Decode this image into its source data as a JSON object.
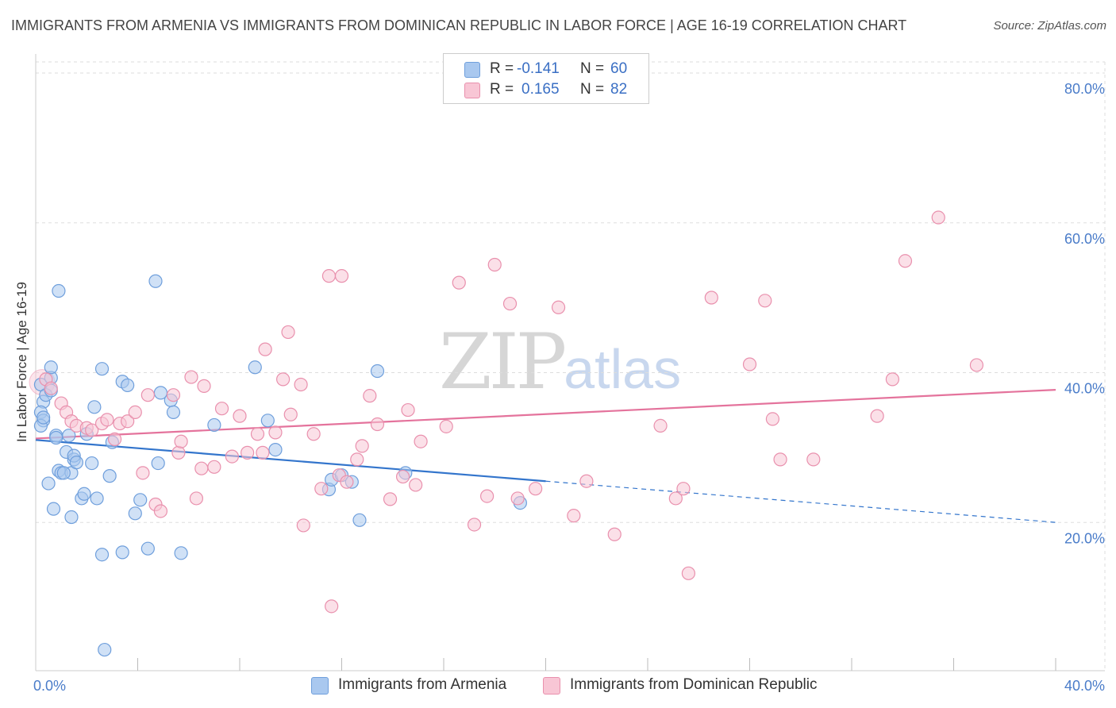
{
  "title": "IMMIGRANTS FROM ARMENIA VS IMMIGRANTS FROM DOMINICAN REPUBLIC IN LABOR FORCE | AGE 16-19 CORRELATION CHART",
  "source": "Source: ZipAtlas.com",
  "watermark": {
    "zip": "ZIP",
    "atlas": "atlas"
  },
  "colors": {
    "armenia_fill": "#a9c8ef",
    "armenia_stroke": "#6f9fdc",
    "armenia_line": "#3375cc",
    "dominican_fill": "#f8c6d5",
    "dominican_stroke": "#e990ad",
    "dominican_line": "#e4739c",
    "grid": "#dddddd",
    "tick_label": "#4a7cc9"
  },
  "legend": {
    "rows": [
      {
        "r_label": "R =",
        "r_value": "-0.141",
        "n_label": "N =",
        "n_value": "60"
      },
      {
        "r_label": "R =",
        "r_value": "0.165",
        "n_label": "N =",
        "n_value": "82"
      }
    ]
  },
  "chart_data": {
    "type": "scatter",
    "title": "IMMIGRANTS FROM ARMENIA VS IMMIGRANTS FROM DOMINICAN REPUBLIC IN LABOR FORCE | AGE 16-19 CORRELATION CHART",
    "xlabel": "",
    "ylabel": "In Labor Force | Age 16-19",
    "xlim": [
      0,
      40
    ],
    "ylim": [
      0,
      80
    ],
    "x_tick_labels": [
      "0.0%",
      "40.0%"
    ],
    "y_ticks": [
      20,
      40,
      60,
      80
    ],
    "y_tick_labels": [
      "20.0%",
      "40.0%",
      "60.0%",
      "80.0%"
    ],
    "series": [
      {
        "name": "Immigrants from Armenia",
        "R": -0.141,
        "N": 60,
        "trend": {
          "x0": 0,
          "y0": 30.8,
          "x1": 20,
          "y1": 25.3,
          "dash_x1": 40,
          "dash_y1": 19.8
        },
        "points": [
          [
            0.2,
            38.2
          ],
          [
            0.3,
            35.9
          ],
          [
            0.2,
            34.5
          ],
          [
            0.3,
            33.4
          ],
          [
            0.2,
            32.7
          ],
          [
            0.6,
            39.1
          ],
          [
            0.4,
            36.8
          ],
          [
            0.6,
            37.4
          ],
          [
            0.6,
            40.5
          ],
          [
            0.3,
            33.8
          ],
          [
            0.9,
            50.7
          ],
          [
            0.5,
            25.0
          ],
          [
            0.7,
            21.6
          ],
          [
            0.8,
            31.4
          ],
          [
            0.9,
            26.7
          ],
          [
            1.0,
            26.4
          ],
          [
            1.3,
            31.4
          ],
          [
            1.2,
            29.2
          ],
          [
            1.5,
            28.2
          ],
          [
            1.4,
            26.4
          ],
          [
            1.5,
            28.7
          ],
          [
            1.1,
            26.4
          ],
          [
            1.4,
            20.5
          ],
          [
            1.8,
            23.0
          ],
          [
            1.9,
            23.6
          ],
          [
            2.0,
            31.6
          ],
          [
            2.3,
            35.2
          ],
          [
            2.2,
            27.7
          ],
          [
            2.4,
            23.0
          ],
          [
            2.6,
            40.3
          ],
          [
            2.9,
            26.0
          ],
          [
            3.0,
            30.5
          ],
          [
            3.4,
            38.6
          ],
          [
            3.6,
            38.1
          ],
          [
            3.9,
            21.0
          ],
          [
            4.1,
            22.8
          ],
          [
            4.7,
            52.0
          ],
          [
            4.9,
            37.1
          ],
          [
            5.3,
            36.1
          ],
          [
            4.8,
            27.7
          ],
          [
            5.4,
            34.5
          ],
          [
            7.0,
            32.8
          ],
          [
            8.6,
            40.5
          ],
          [
            9.1,
            33.4
          ],
          [
            9.4,
            29.5
          ],
          [
            11.5,
            24.2
          ],
          [
            11.6,
            25.5
          ],
          [
            12.0,
            26.1
          ],
          [
            12.4,
            25.2
          ],
          [
            12.7,
            20.1
          ],
          [
            13.4,
            40.0
          ],
          [
            14.5,
            26.4
          ],
          [
            19.0,
            22.4
          ],
          [
            2.7,
            2.8
          ],
          [
            2.6,
            15.5
          ],
          [
            3.4,
            15.8
          ],
          [
            4.4,
            16.3
          ],
          [
            5.7,
            15.7
          ],
          [
            0.8,
            31.1
          ],
          [
            1.6,
            27.8
          ]
        ]
      },
      {
        "name": "Immigrants from Dominican Republic",
        "R": 0.165,
        "N": 82,
        "trend": {
          "x0": 0,
          "y0": 31.0,
          "x1": 40,
          "y1": 37.5
        },
        "points": [
          [
            0.4,
            38.9
          ],
          [
            0.6,
            37.7
          ],
          [
            1.0,
            35.7
          ],
          [
            1.2,
            34.5
          ],
          [
            1.4,
            33.3
          ],
          [
            1.6,
            32.7
          ],
          [
            2.0,
            32.4
          ],
          [
            2.2,
            32.1
          ],
          [
            2.6,
            33.0
          ],
          [
            2.8,
            33.5
          ],
          [
            3.1,
            30.9
          ],
          [
            3.3,
            33.0
          ],
          [
            3.6,
            33.3
          ],
          [
            3.9,
            34.5
          ],
          [
            4.2,
            26.4
          ],
          [
            4.4,
            36.8
          ],
          [
            4.7,
            22.2
          ],
          [
            4.9,
            21.3
          ],
          [
            5.4,
            36.8
          ],
          [
            5.6,
            29.1
          ],
          [
            5.7,
            30.6
          ],
          [
            6.1,
            39.2
          ],
          [
            6.3,
            23.0
          ],
          [
            6.5,
            27.0
          ],
          [
            6.6,
            38.0
          ],
          [
            7.0,
            27.2
          ],
          [
            7.3,
            35.0
          ],
          [
            7.7,
            28.6
          ],
          [
            8.0,
            34.0
          ],
          [
            8.3,
            29.1
          ],
          [
            8.7,
            31.6
          ],
          [
            8.9,
            29.1
          ],
          [
            9.0,
            42.9
          ],
          [
            9.4,
            31.8
          ],
          [
            9.7,
            38.9
          ],
          [
            9.9,
            45.2
          ],
          [
            10.0,
            34.2
          ],
          [
            10.4,
            38.2
          ],
          [
            10.5,
            19.4
          ],
          [
            10.9,
            31.6
          ],
          [
            11.2,
            24.3
          ],
          [
            11.5,
            52.7
          ],
          [
            11.6,
            8.6
          ],
          [
            11.9,
            26.1
          ],
          [
            12.0,
            52.7
          ],
          [
            12.2,
            25.2
          ],
          [
            12.6,
            28.2
          ],
          [
            12.8,
            30.0
          ],
          [
            13.1,
            36.7
          ],
          [
            13.4,
            32.9
          ],
          [
            13.9,
            22.9
          ],
          [
            14.4,
            25.9
          ],
          [
            14.6,
            34.8
          ],
          [
            14.9,
            24.8
          ],
          [
            15.1,
            30.6
          ],
          [
            16.1,
            32.6
          ],
          [
            16.6,
            51.8
          ],
          [
            17.2,
            19.5
          ],
          [
            17.7,
            23.3
          ],
          [
            18.0,
            54.2
          ],
          [
            18.6,
            49.0
          ],
          [
            18.9,
            23.0
          ],
          [
            19.6,
            24.3
          ],
          [
            20.5,
            48.5
          ],
          [
            21.1,
            20.7
          ],
          [
            21.6,
            25.3
          ],
          [
            22.7,
            18.2
          ],
          [
            24.5,
            32.7
          ],
          [
            25.1,
            23.0
          ],
          [
            25.4,
            24.3
          ],
          [
            25.6,
            13.0
          ],
          [
            26.5,
            49.8
          ],
          [
            28.0,
            40.9
          ],
          [
            28.6,
            49.4
          ],
          [
            28.9,
            33.6
          ],
          [
            29.2,
            28.2
          ],
          [
            30.5,
            28.2
          ],
          [
            33.0,
            34.0
          ],
          [
            33.6,
            38.9
          ],
          [
            34.1,
            54.7
          ],
          [
            35.4,
            60.5
          ],
          [
            36.9,
            40.8
          ]
        ]
      }
    ]
  },
  "bottom_legend": [
    {
      "label": "Immigrants from Armenia"
    },
    {
      "label": "Immigrants from Dominican Republic"
    }
  ]
}
